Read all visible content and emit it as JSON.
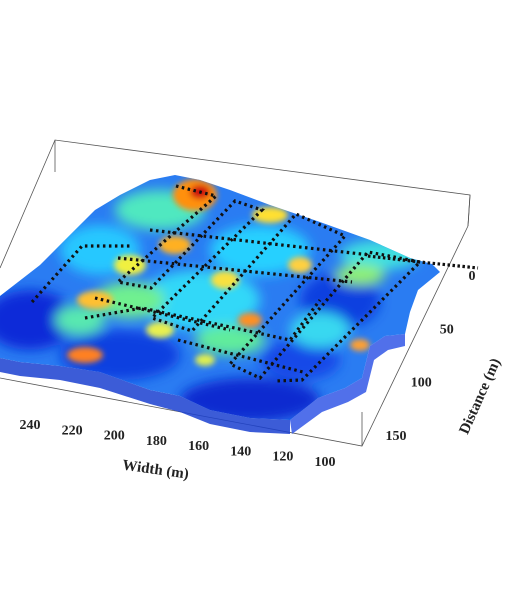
{
  "chart_data": {
    "type": "surface3d",
    "title": "",
    "xlabel": "Width (m)",
    "ylabel": "Distance (m)",
    "x_ticks": [
      100,
      120,
      140,
      160,
      180,
      200,
      220,
      240
    ],
    "y_ticks": [
      0,
      50,
      100,
      150
    ],
    "colormap": [
      "#00008f",
      "#0050ff",
      "#00c8ff",
      "#80ff80",
      "#ffff00",
      "#ff8000",
      "#c00000"
    ],
    "grid": false,
    "legend": "none",
    "overlay": "dotted survey transect lines in a criss-cross grid",
    "transect_color": "#111111"
  }
}
